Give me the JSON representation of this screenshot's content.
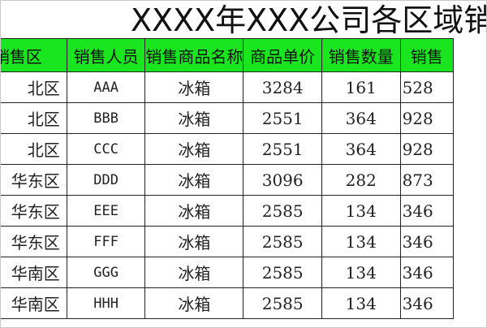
{
  "title": "XXXX年XXX公司各区域销",
  "header": {
    "region": "销售区",
    "person": "销售人员",
    "product": "销售商品名称",
    "price": "商品单价",
    "qty": "销售数量",
    "amount": "销售"
  },
  "rows": [
    {
      "region": "北区",
      "person": "AAA",
      "product": "冰箱",
      "price": "3284",
      "qty": "161",
      "amount": "528"
    },
    {
      "region": "北区",
      "person": "BBB",
      "product": "冰箱",
      "price": "2551",
      "qty": "364",
      "amount": "928"
    },
    {
      "region": "北区",
      "person": "CCC",
      "product": "冰箱",
      "price": "2551",
      "qty": "364",
      "amount": "928"
    },
    {
      "region": "华东区",
      "person": "DDD",
      "product": "冰箱",
      "price": "3096",
      "qty": "282",
      "amount": "873"
    },
    {
      "region": "华东区",
      "person": "EEE",
      "product": "冰箱",
      "price": "2585",
      "qty": "134",
      "amount": "346"
    },
    {
      "region": "华东区",
      "person": "FFF",
      "product": "冰箱",
      "price": "2585",
      "qty": "134",
      "amount": "346"
    },
    {
      "region": "华南区",
      "person": "GGG",
      "product": "冰箱",
      "price": "2585",
      "qty": "134",
      "amount": "346"
    },
    {
      "region": "华南区",
      "person": "HHH",
      "product": "冰箱",
      "price": "2585",
      "qty": "134",
      "amount": "346"
    }
  ],
  "colors": {
    "header_bg": "#19e61f"
  }
}
